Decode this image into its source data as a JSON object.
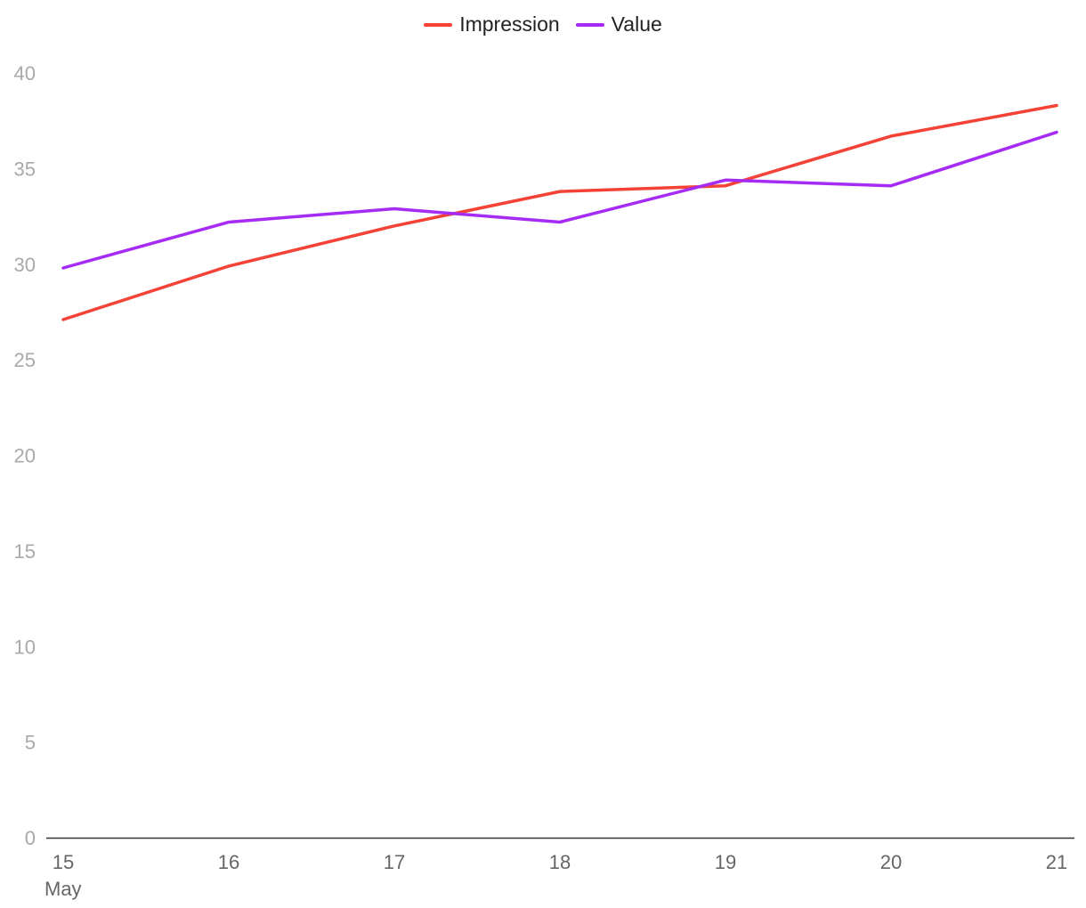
{
  "chart_data": {
    "type": "line",
    "title": "",
    "xlabel": "",
    "ylabel": "",
    "x": [
      15,
      16,
      17,
      18,
      19,
      20,
      21
    ],
    "x_tick_labels": [
      "15",
      "16",
      "17",
      "18",
      "19",
      "20",
      "21"
    ],
    "x_sub_label": "May",
    "ylim": [
      0,
      40
    ],
    "y_ticks": [
      0,
      5,
      10,
      15,
      20,
      25,
      30,
      35,
      40
    ],
    "grid": false,
    "legend_position": "top-center",
    "series": [
      {
        "name": "Impression",
        "color": "#f44336",
        "values": [
          27.1,
          29.9,
          32.0,
          33.8,
          34.1,
          36.7,
          38.3
        ]
      },
      {
        "name": "Value",
        "color": "#a52bf5",
        "values": [
          29.8,
          32.2,
          32.9,
          32.2,
          34.4,
          34.1,
          36.9
        ]
      }
    ]
  }
}
